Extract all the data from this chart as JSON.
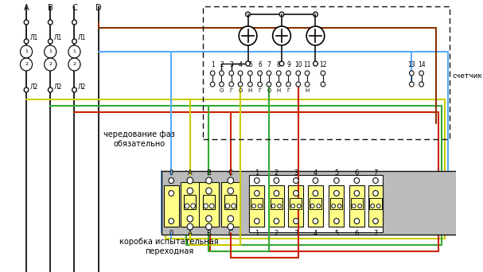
{
  "bg": "#ffffff",
  "Y": "#cccc00",
  "G": "#33aa33",
  "R": "#cc2200",
  "BK": "#111111",
  "BL": "#55aaff",
  "BR": "#883300",
  "GR": "#bbbbbb",
  "TY": "#ffff88",
  "lw": 1.5,
  "ct_labels": [
    "1",
    "2",
    "3",
    "4",
    "5",
    "6",
    "7",
    "8",
    "9",
    "10",
    "11",
    "12",
    "13",
    "14"
  ],
  "tb_top": [
    "0",
    "A",
    "B",
    "C",
    "1",
    "2",
    "3",
    "4",
    "5",
    "6",
    "7"
  ],
  "left_labels": [
    "A",
    "B",
    "C",
    "D"
  ],
  "L1_label": "Л1",
  "L2_label": "Л2",
  "chered_text": "чередование фаз\nобязательно",
  "korob_text": "коробка испытательная\nпереходная",
  "schetnik_text": "счетчик"
}
